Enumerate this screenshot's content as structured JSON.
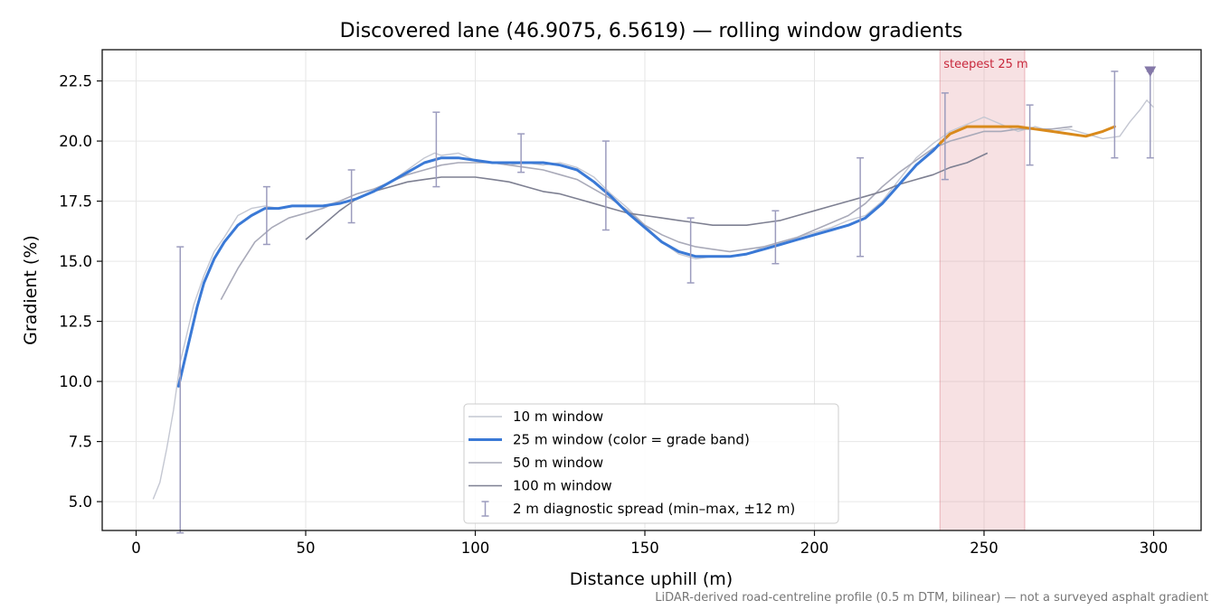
{
  "chart_data": {
    "type": "line",
    "title": "Discovered lane (46.9075, 6.5619) — rolling window gradients",
    "xlabel": "Distance uphill (m)",
    "ylabel": "Gradient (%)",
    "xlim": [
      -10,
      314
    ],
    "ylim": [
      3.8,
      23.8
    ],
    "x_ticks": [
      0,
      50,
      100,
      150,
      200,
      250,
      300
    ],
    "y_ticks": [
      5.0,
      7.5,
      10.0,
      12.5,
      15.0,
      17.5,
      20.0,
      22.5
    ],
    "grid": true,
    "legend_position": "lower-center",
    "footnote": "LiDAR-derived road-centreline profile (0.5 m DTM, bilinear) — not a surveyed asphalt gradient",
    "highlight": {
      "label": "steepest 25 m",
      "x_start": 237,
      "x_end": 262,
      "color": "#e8a3aa"
    },
    "marker": {
      "x": 299,
      "y": 22.9,
      "shape": "triangle-down",
      "color": "#8478a8"
    },
    "series": [
      {
        "name": "10 m window",
        "color": "#c4c7d2",
        "points": [
          [
            5,
            5.1
          ],
          [
            7,
            5.8
          ],
          [
            9,
            7.2
          ],
          [
            11,
            8.8
          ],
          [
            13,
            10.8
          ],
          [
            15,
            12.0
          ],
          [
            17,
            13.2
          ],
          [
            20,
            14.4
          ],
          [
            23,
            15.4
          ],
          [
            26,
            16.0
          ],
          [
            30,
            16.9
          ],
          [
            34,
            17.2
          ],
          [
            38,
            17.3
          ],
          [
            42,
            17.2
          ],
          [
            46,
            17.3
          ],
          [
            50,
            17.3
          ],
          [
            55,
            17.3
          ],
          [
            60,
            17.5
          ],
          [
            65,
            17.8
          ],
          [
            70,
            18.0
          ],
          [
            75,
            18.3
          ],
          [
            80,
            18.8
          ],
          [
            85,
            19.3
          ],
          [
            88,
            19.5
          ],
          [
            90,
            19.4
          ],
          [
            95,
            19.5
          ],
          [
            100,
            19.2
          ],
          [
            105,
            19.1
          ],
          [
            110,
            19.0
          ],
          [
            115,
            19.1
          ],
          [
            120,
            19.0
          ],
          [
            125,
            19.1
          ],
          [
            130,
            18.9
          ],
          [
            135,
            18.5
          ],
          [
            140,
            17.8
          ],
          [
            145,
            17.2
          ],
          [
            150,
            16.5
          ],
          [
            155,
            15.8
          ],
          [
            160,
            15.3
          ],
          [
            165,
            15.1
          ],
          [
            170,
            15.2
          ],
          [
            175,
            15.2
          ],
          [
            180,
            15.3
          ],
          [
            185,
            15.6
          ],
          [
            190,
            15.8
          ],
          [
            195,
            16.0
          ],
          [
            200,
            16.2
          ],
          [
            205,
            16.4
          ],
          [
            210,
            16.7
          ],
          [
            215,
            16.9
          ],
          [
            220,
            17.5
          ],
          [
            225,
            18.4
          ],
          [
            230,
            19.3
          ],
          [
            235,
            19.9
          ],
          [
            240,
            20.4
          ],
          [
            245,
            20.7
          ],
          [
            250,
            21.0
          ],
          [
            255,
            20.7
          ],
          [
            260,
            20.4
          ],
          [
            265,
            20.6
          ],
          [
            270,
            20.4
          ],
          [
            275,
            20.5
          ],
          [
            280,
            20.3
          ],
          [
            285,
            20.1
          ],
          [
            290,
            20.2
          ],
          [
            293,
            20.8
          ],
          [
            296,
            21.3
          ],
          [
            298,
            21.7
          ],
          [
            300,
            21.4
          ]
        ]
      },
      {
        "name": "25 m window (color = grade band)",
        "color": "#3a79d6",
        "band_color": "#d98a1c",
        "band_from_x": 237,
        "points": [
          [
            12.5,
            9.8
          ],
          [
            14,
            10.7
          ],
          [
            16,
            11.9
          ],
          [
            18,
            13.1
          ],
          [
            20,
            14.1
          ],
          [
            23,
            15.1
          ],
          [
            26,
            15.8
          ],
          [
            30,
            16.5
          ],
          [
            34,
            16.9
          ],
          [
            38,
            17.2
          ],
          [
            42,
            17.2
          ],
          [
            46,
            17.3
          ],
          [
            50,
            17.3
          ],
          [
            55,
            17.3
          ],
          [
            60,
            17.4
          ],
          [
            65,
            17.6
          ],
          [
            70,
            17.9
          ],
          [
            75,
            18.3
          ],
          [
            80,
            18.7
          ],
          [
            85,
            19.1
          ],
          [
            90,
            19.3
          ],
          [
            95,
            19.3
          ],
          [
            100,
            19.2
          ],
          [
            105,
            19.1
          ],
          [
            110,
            19.1
          ],
          [
            115,
            19.1
          ],
          [
            120,
            19.1
          ],
          [
            125,
            19.0
          ],
          [
            130,
            18.8
          ],
          [
            135,
            18.3
          ],
          [
            140,
            17.7
          ],
          [
            145,
            17.0
          ],
          [
            150,
            16.4
          ],
          [
            155,
            15.8
          ],
          [
            160,
            15.4
          ],
          [
            165,
            15.2
          ],
          [
            170,
            15.2
          ],
          [
            175,
            15.2
          ],
          [
            180,
            15.3
          ],
          [
            185,
            15.5
          ],
          [
            190,
            15.7
          ],
          [
            195,
            15.9
          ],
          [
            200,
            16.1
          ],
          [
            205,
            16.3
          ],
          [
            210,
            16.5
          ],
          [
            215,
            16.8
          ],
          [
            220,
            17.4
          ],
          [
            225,
            18.2
          ],
          [
            230,
            19.0
          ],
          [
            235,
            19.6
          ],
          [
            237,
            19.9
          ],
          [
            240,
            20.3
          ],
          [
            245,
            20.6
          ],
          [
            250,
            20.6
          ],
          [
            255,
            20.6
          ],
          [
            260,
            20.6
          ],
          [
            265,
            20.5
          ],
          [
            270,
            20.4
          ],
          [
            275,
            20.3
          ],
          [
            280,
            20.2
          ],
          [
            285,
            20.4
          ],
          [
            288.5,
            20.6
          ]
        ]
      },
      {
        "name": "50 m window",
        "color": "#a9aab9",
        "points": [
          [
            25,
            13.4
          ],
          [
            30,
            14.7
          ],
          [
            35,
            15.8
          ],
          [
            40,
            16.4
          ],
          [
            45,
            16.8
          ],
          [
            50,
            17.0
          ],
          [
            55,
            17.2
          ],
          [
            60,
            17.5
          ],
          [
            65,
            17.8
          ],
          [
            70,
            18.0
          ],
          [
            75,
            18.3
          ],
          [
            80,
            18.6
          ],
          [
            85,
            18.8
          ],
          [
            90,
            19.0
          ],
          [
            95,
            19.1
          ],
          [
            100,
            19.1
          ],
          [
            105,
            19.1
          ],
          [
            110,
            19.0
          ],
          [
            115,
            18.9
          ],
          [
            120,
            18.8
          ],
          [
            125,
            18.6
          ],
          [
            130,
            18.4
          ],
          [
            135,
            18.0
          ],
          [
            140,
            17.6
          ],
          [
            145,
            17.1
          ],
          [
            150,
            16.5
          ],
          [
            155,
            16.1
          ],
          [
            160,
            15.8
          ],
          [
            165,
            15.6
          ],
          [
            170,
            15.5
          ],
          [
            175,
            15.4
          ],
          [
            180,
            15.5
          ],
          [
            185,
            15.6
          ],
          [
            190,
            15.8
          ],
          [
            195,
            16.0
          ],
          [
            200,
            16.3
          ],
          [
            205,
            16.6
          ],
          [
            210,
            16.9
          ],
          [
            215,
            17.4
          ],
          [
            220,
            18.1
          ],
          [
            225,
            18.7
          ],
          [
            230,
            19.2
          ],
          [
            235,
            19.7
          ],
          [
            240,
            20.0
          ],
          [
            245,
            20.2
          ],
          [
            250,
            20.4
          ],
          [
            255,
            20.4
          ],
          [
            260,
            20.5
          ],
          [
            265,
            20.5
          ],
          [
            270,
            20.5
          ],
          [
            276,
            20.6
          ]
        ]
      },
      {
        "name": "100 m window",
        "color": "#7e8092",
        "points": [
          [
            50,
            15.9
          ],
          [
            55,
            16.5
          ],
          [
            60,
            17.1
          ],
          [
            65,
            17.6
          ],
          [
            70,
            17.9
          ],
          [
            75,
            18.1
          ],
          [
            80,
            18.3
          ],
          [
            85,
            18.4
          ],
          [
            90,
            18.5
          ],
          [
            95,
            18.5
          ],
          [
            100,
            18.5
          ],
          [
            105,
            18.4
          ],
          [
            110,
            18.3
          ],
          [
            115,
            18.1
          ],
          [
            120,
            17.9
          ],
          [
            125,
            17.8
          ],
          [
            130,
            17.6
          ],
          [
            135,
            17.4
          ],
          [
            140,
            17.2
          ],
          [
            145,
            17.0
          ],
          [
            150,
            16.9
          ],
          [
            155,
            16.8
          ],
          [
            160,
            16.7
          ],
          [
            165,
            16.6
          ],
          [
            170,
            16.5
          ],
          [
            175,
            16.5
          ],
          [
            180,
            16.5
          ],
          [
            185,
            16.6
          ],
          [
            190,
            16.7
          ],
          [
            195,
            16.9
          ],
          [
            200,
            17.1
          ],
          [
            205,
            17.3
          ],
          [
            210,
            17.5
          ],
          [
            215,
            17.7
          ],
          [
            220,
            17.9
          ],
          [
            225,
            18.2
          ],
          [
            230,
            18.4
          ],
          [
            235,
            18.6
          ],
          [
            240,
            18.9
          ],
          [
            245,
            19.1
          ],
          [
            251,
            19.5
          ]
        ]
      }
    ],
    "error_bars": {
      "name": "2 m diagnostic spread (min–max, ±12 m)",
      "color": "#9c9cbe",
      "bars": [
        [
          13,
          3.7,
          15.6
        ],
        [
          38.5,
          15.7,
          18.1
        ],
        [
          63.5,
          16.6,
          18.8
        ],
        [
          88.5,
          18.1,
          21.2
        ],
        [
          113.5,
          18.7,
          20.3
        ],
        [
          138.5,
          16.3,
          20.0
        ],
        [
          163.5,
          14.1,
          16.8
        ],
        [
          188.5,
          14.9,
          17.1
        ],
        [
          213.5,
          15.2,
          19.3
        ],
        [
          238.5,
          18.4,
          22.0
        ],
        [
          263.5,
          19.0,
          21.5
        ],
        [
          288.5,
          19.3,
          22.9
        ],
        [
          299,
          19.3,
          22.9
        ]
      ]
    }
  }
}
